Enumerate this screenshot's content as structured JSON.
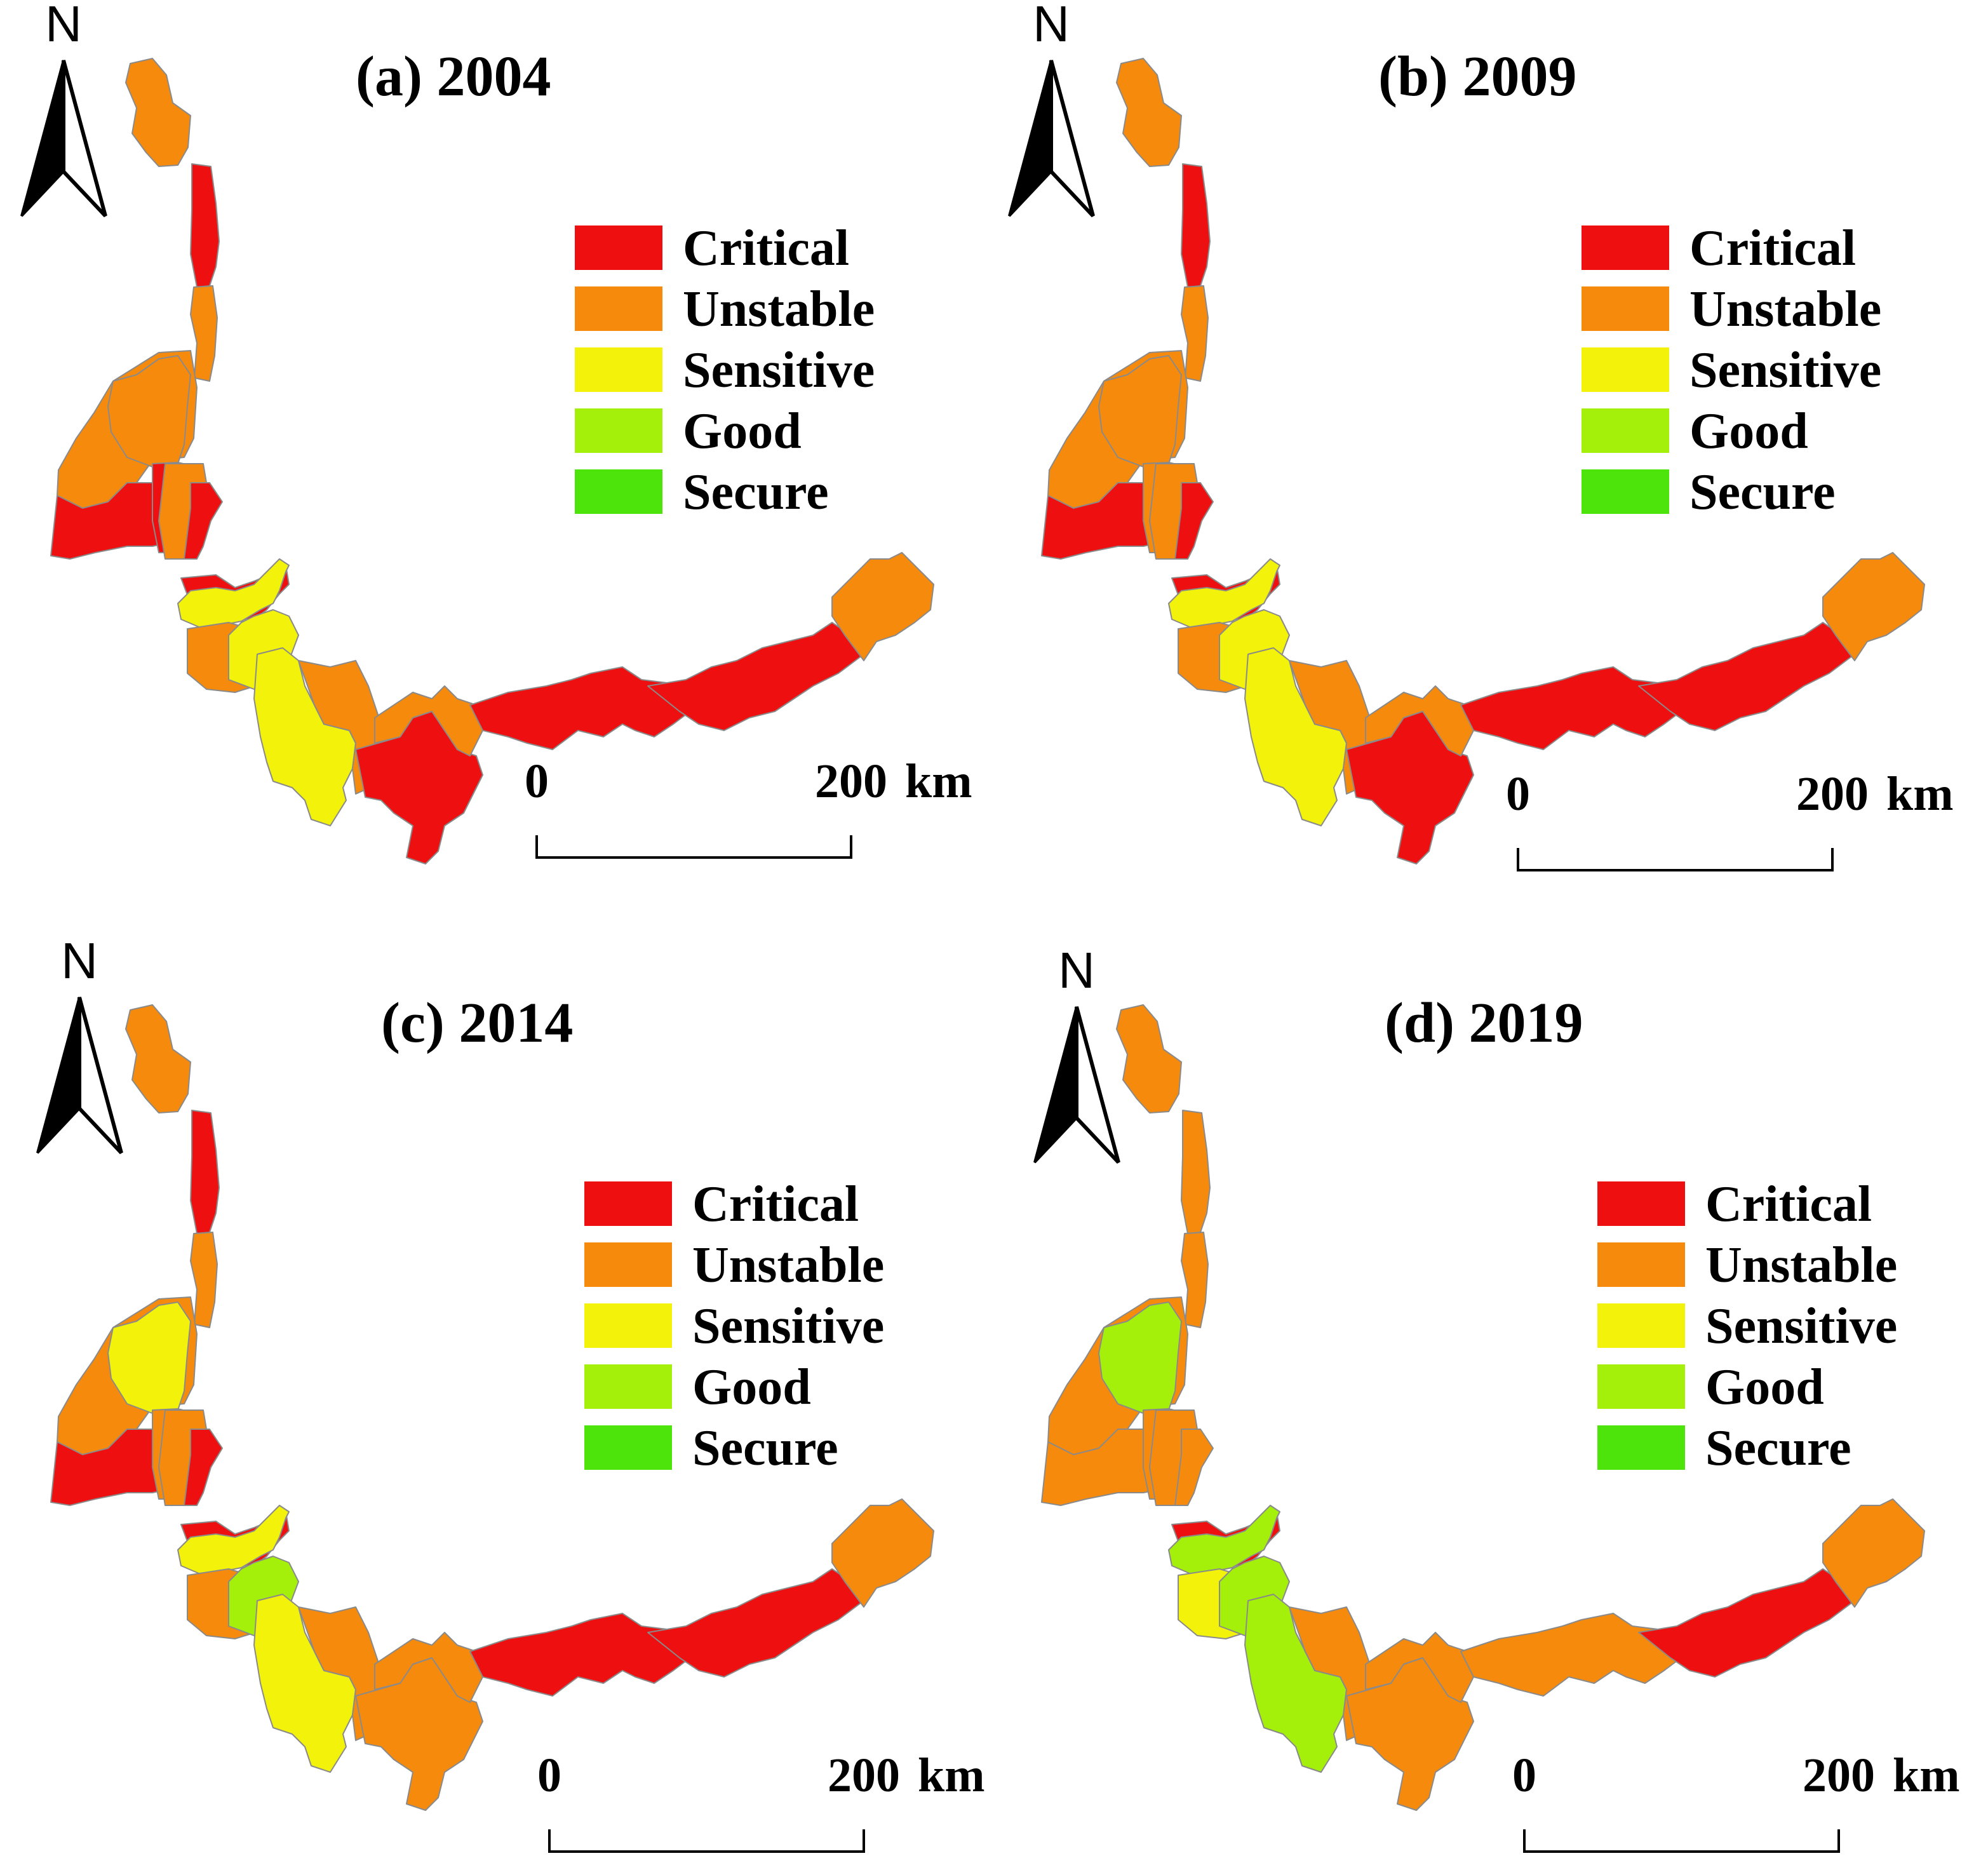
{
  "colors": {
    "Critical": "#ee1010",
    "Unstable": "#f68a0c",
    "Sensitive": "#f2f20a",
    "Good": "#a4f00a",
    "Secure": "#4ce40a"
  },
  "legend": [
    "Critical",
    "Unstable",
    "Sensitive",
    "Good",
    "Secure"
  ],
  "north_label": "N",
  "scale": {
    "start": "0",
    "end": "200",
    "unit": "km"
  },
  "panels": [
    {
      "title": "(a) 2004",
      "regions": [
        "Unstable",
        "Critical",
        "Unstable",
        "Unstable",
        "Unstable",
        "Critical",
        "Critical",
        "Unstable",
        "Critical",
        "Critical",
        "Sensitive",
        "Unstable",
        "Sensitive",
        "Sensitive",
        "Unstable",
        "Critical",
        "Unstable",
        "Critical",
        "Critical",
        "Unstable"
      ]
    },
    {
      "title": "(b) 2009",
      "regions": [
        "Unstable",
        "Critical",
        "Unstable",
        "Unstable",
        "Unstable",
        "Critical",
        "Unstable",
        "Unstable",
        "Critical",
        "Critical",
        "Sensitive",
        "Unstable",
        "Sensitive",
        "Sensitive",
        "Unstable",
        "Critical",
        "Unstable",
        "Critical",
        "Critical",
        "Unstable"
      ]
    },
    {
      "title": "(c) 2014",
      "regions": [
        "Unstable",
        "Critical",
        "Unstable",
        "Unstable",
        "Sensitive",
        "Critical",
        "Unstable",
        "Unstable",
        "Critical",
        "Critical",
        "Sensitive",
        "Unstable",
        "Good",
        "Sensitive",
        "Unstable",
        "Unstable",
        "Unstable",
        "Critical",
        "Critical",
        "Unstable"
      ]
    },
    {
      "title": "(d) 2019",
      "regions": [
        "Unstable",
        "Unstable",
        "Unstable",
        "Unstable",
        "Good",
        "Unstable",
        "Unstable",
        "Unstable",
        "Unstable",
        "Critical",
        "Good",
        "Sensitive",
        "Good",
        "Good",
        "Unstable",
        "Unstable",
        "Unstable",
        "Unstable",
        "Critical",
        "Unstable"
      ]
    }
  ]
}
